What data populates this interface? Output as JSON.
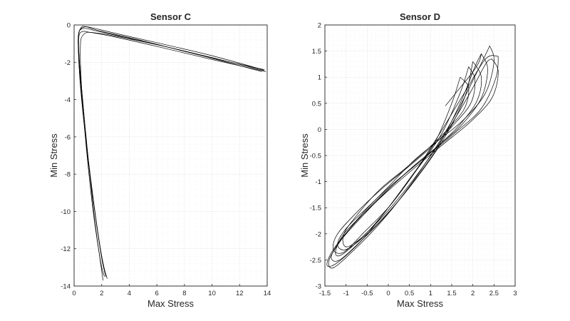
{
  "chart_data": [
    {
      "type": "line",
      "title": "Sensor C",
      "xlabel": "Max Stress",
      "ylabel": "Min Stress",
      "xlim": [
        0,
        14
      ],
      "ylim": [
        -14,
        0
      ],
      "xticks": [
        "0",
        "2",
        "4",
        "6",
        "8",
        "10",
        "12",
        "14"
      ],
      "yticks": [
        "0",
        "-2",
        "-4",
        "-6",
        "-8",
        "-10",
        "-12",
        "-14"
      ],
      "grid": true,
      "color": "#000000",
      "series": [
        {
          "x": [
            13.8,
            10.0,
            6.0,
            3.0,
            1.5,
            1.0,
            0.6,
            0.35,
            0.3,
            0.5,
            1.0,
            1.6,
            2.0,
            2.3
          ],
          "y": [
            -2.45,
            -1.75,
            -1.05,
            -0.55,
            -0.3,
            -0.2,
            -0.2,
            -0.4,
            -1.2,
            -3.5,
            -7.0,
            -10.5,
            -12.5,
            -13.5
          ]
        },
        {
          "x": [
            13.7,
            10.0,
            6.0,
            3.0,
            1.3,
            0.8,
            0.4,
            0.3,
            0.45,
            0.9,
            1.5,
            1.9,
            2.25
          ],
          "y": [
            -2.4,
            -1.65,
            -0.95,
            -0.45,
            -0.15,
            -0.1,
            -0.3,
            -1.0,
            -3.2,
            -6.5,
            -10.0,
            -12.0,
            -13.3
          ]
        },
        {
          "x": [
            13.9,
            10.0,
            6.0,
            3.0,
            1.2,
            0.6,
            0.35,
            0.35,
            0.55,
            1.05,
            1.7,
            2.1,
            2.4
          ],
          "y": [
            -2.5,
            -1.85,
            -1.15,
            -0.65,
            -0.4,
            -0.35,
            -0.6,
            -1.5,
            -3.8,
            -7.5,
            -11.0,
            -12.8,
            -13.6
          ]
        },
        {
          "x": [
            13.6,
            8.0,
            4.0,
            1.8,
            0.7,
            0.45,
            0.7,
            1.3,
            1.9,
            2.2
          ],
          "y": [
            -2.5,
            -1.4,
            -0.75,
            -0.45,
            -0.5,
            -1.5,
            -5.0,
            -9.5,
            -12.6,
            -13.5
          ]
        },
        {
          "x": [
            13.8,
            9.0,
            5.0,
            2.0,
            0.9,
            0.5,
            0.3,
            0.5,
            1.0,
            1.5,
            2.1
          ],
          "y": [
            -2.4,
            -1.6,
            -0.85,
            -0.35,
            -0.1,
            -0.15,
            -0.8,
            -3.0,
            -7.0,
            -10.5,
            -13.7
          ]
        }
      ]
    },
    {
      "type": "line",
      "title": "Sensor D",
      "xlabel": "Max Stress",
      "ylabel": "Min Stress",
      "xlim": [
        -1.5,
        3
      ],
      "ylim": [
        -3,
        2
      ],
      "xticks": [
        "-1.5",
        "-1",
        "-0.5",
        "0",
        "0.5",
        "1",
        "1.5",
        "2",
        "2.5",
        "3"
      ],
      "yticks": [
        "2",
        "1.5",
        "1",
        "0.5",
        "0",
        "-0.5",
        "-1",
        "-1.5",
        "-2",
        "-2.5",
        "-3"
      ],
      "grid": true,
      "color": "#000000",
      "series": [
        {
          "x": [
            2.4,
            2.5,
            2.3,
            1.8,
            1.2,
            0.6,
            0.0,
            -0.6,
            -1.1,
            -1.4,
            -1.3,
            -0.8,
            -0.2,
            0.4,
            1.0,
            1.6,
            2.1,
            2.4
          ],
          "y": [
            1.6,
            1.3,
            0.7,
            0.2,
            -0.2,
            -0.6,
            -1.1,
            -1.6,
            -2.1,
            -2.5,
            -2.65,
            -2.3,
            -1.8,
            -1.2,
            -0.5,
            0.3,
            1.1,
            1.6
          ]
        },
        {
          "x": [
            2.0,
            2.2,
            2.1,
            1.7,
            1.2,
            0.7,
            0.1,
            -0.5,
            -1.0,
            -1.2,
            -1.0,
            -0.5,
            0.1,
            0.7,
            1.3,
            1.8,
            2.0
          ],
          "y": [
            1.3,
            1.0,
            0.55,
            0.1,
            -0.3,
            -0.65,
            -1.05,
            -1.5,
            -1.9,
            -2.2,
            -2.3,
            -2.0,
            -1.5,
            -0.9,
            -0.2,
            0.6,
            1.3
          ]
        },
        {
          "x": [
            2.6,
            2.55,
            2.2,
            1.6,
            1.0,
            0.4,
            -0.2,
            -0.8,
            -1.3,
            -1.45,
            -1.2,
            -0.6,
            0.0,
            0.6,
            1.2,
            1.8,
            2.3,
            2.6
          ],
          "y": [
            1.4,
            1.0,
            0.4,
            -0.05,
            -0.45,
            -0.85,
            -1.3,
            -1.8,
            -2.3,
            -2.6,
            -2.55,
            -2.1,
            -1.5,
            -0.85,
            -0.1,
            0.7,
            1.35,
            1.4
          ]
        },
        {
          "x": [
            1.7,
            1.9,
            1.8,
            1.4,
            0.9,
            0.4,
            -0.2,
            -0.7,
            -1.05,
            -1.0,
            -0.6,
            -0.1,
            0.5,
            1.1,
            1.5,
            1.7
          ],
          "y": [
            1.0,
            0.8,
            0.4,
            0.0,
            -0.4,
            -0.75,
            -1.15,
            -1.6,
            -2.0,
            -2.25,
            -2.05,
            -1.6,
            -0.95,
            -0.25,
            0.5,
            1.0
          ]
        },
        {
          "x": [
            2.2,
            2.35,
            2.2,
            1.75,
            1.2,
            0.6,
            0.0,
            -0.6,
            -1.15,
            -1.35,
            -1.15,
            -0.6,
            0.0,
            0.6,
            1.2,
            1.7,
            2.05,
            2.2
          ],
          "y": [
            1.45,
            1.15,
            0.6,
            0.1,
            -0.3,
            -0.7,
            -1.15,
            -1.65,
            -2.15,
            -2.45,
            -2.5,
            -2.1,
            -1.6,
            -1.0,
            -0.3,
            0.5,
            1.2,
            1.45
          ]
        },
        {
          "x": [
            1.9,
            2.05,
            1.95,
            1.5,
            1.0,
            0.5,
            -0.1,
            -0.7,
            -1.2,
            -1.3,
            -1.05,
            -0.55,
            0.05,
            0.65,
            1.25,
            1.7,
            1.9
          ],
          "y": [
            1.2,
            0.95,
            0.5,
            0.05,
            -0.35,
            -0.7,
            -1.1,
            -1.55,
            -2.0,
            -2.3,
            -2.35,
            -1.95,
            -1.45,
            -0.8,
            -0.1,
            0.7,
            1.2
          ]
        },
        {
          "x": [
            2.45,
            2.6,
            2.45,
            1.95,
            1.35,
            0.75,
            0.1,
            -0.5,
            -1.05,
            -1.25,
            -1.1,
            -0.6,
            0.0,
            0.65,
            1.3,
            1.9,
            2.3,
            2.45
          ],
          "y": [
            1.35,
            1.1,
            0.6,
            0.15,
            -0.25,
            -0.65,
            -1.1,
            -1.55,
            -2.0,
            -2.35,
            -2.4,
            -2.05,
            -1.55,
            -0.9,
            -0.15,
            0.65,
            1.25,
            1.35
          ]
        },
        {
          "x": [
            1.35,
            1.7,
            2.0,
            2.15,
            2.2
          ],
          "y": [
            0.45,
            0.8,
            1.1,
            1.3,
            1.45
          ]
        }
      ]
    }
  ]
}
